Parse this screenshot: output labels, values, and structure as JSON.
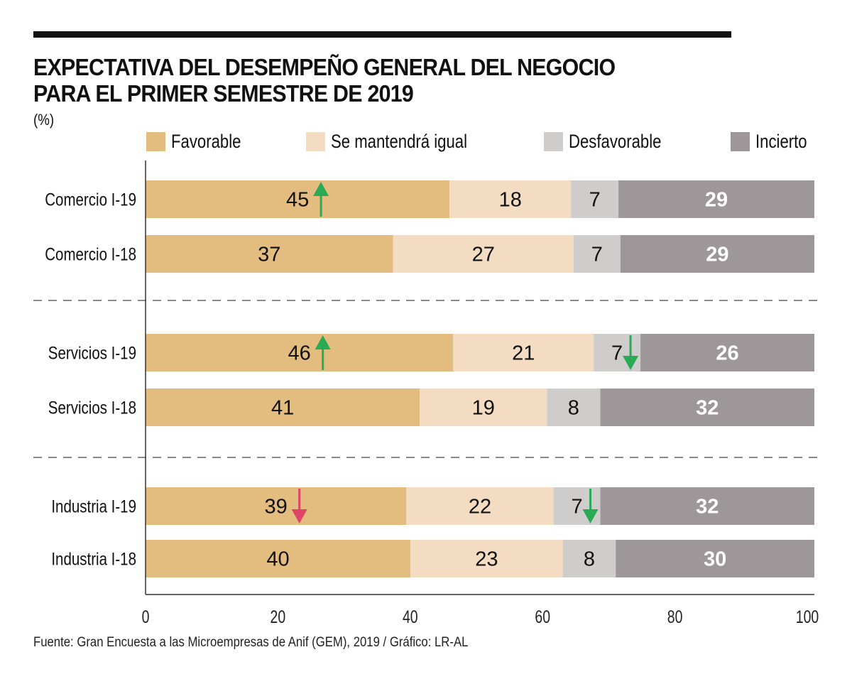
{
  "title_line1": "EXPECTATIVA DEL DESEMPEÑO GENERAL DEL NEGOCIO",
  "title_line2": "PARA EL PRIMER SEMESTRE DE 2019",
  "unit": "(%)",
  "footer": "Fuente: Gran Encuesta a las Microempresas de Anif (GEM), 2019 / Gráfico: LR-AL",
  "colors": {
    "favorable": "#e3bd80",
    "igual": "#f3dcc2",
    "desfavorable": "#cfcdcc",
    "incierto": "#9d9799",
    "arrow_up": "#2aaa55",
    "arrow_down_good": "#2aaa55",
    "arrow_down_bad": "#dd4466"
  },
  "chart_data": {
    "type": "bar",
    "orientation": "horizontal",
    "stacked": true,
    "title": "EXPECTATIVA DEL DESEMPEÑO GENERAL DEL NEGOCIO PARA EL PRIMER SEMESTRE DE 2019",
    "ylabel": "",
    "xlabel": "",
    "unit": "%",
    "xlim": [
      0,
      100
    ],
    "xticks": [
      0,
      20,
      40,
      60,
      80,
      100
    ],
    "legend_position": "top",
    "categories": [
      "Comercio I-19",
      "Comercio I-18",
      "Servicios I-19",
      "Servicios I-18",
      "Industria I-19",
      "Industria I-18"
    ],
    "groups": [
      {
        "name": "Comercio",
        "rows": [
          0,
          1
        ]
      },
      {
        "name": "Servicios",
        "rows": [
          2,
          3
        ]
      },
      {
        "name": "Industria",
        "rows": [
          4,
          5
        ]
      }
    ],
    "series": [
      {
        "name": "Favorable",
        "key": "favorable",
        "values": [
          45,
          37,
          46,
          41,
          39,
          40
        ]
      },
      {
        "name": "Se mantendrá igual",
        "key": "igual",
        "values": [
          18,
          27,
          21,
          19,
          22,
          23
        ]
      },
      {
        "name": "Desfavorable",
        "key": "desfavorable",
        "values": [
          7,
          7,
          7,
          8,
          7,
          8
        ]
      },
      {
        "name": "Incierto",
        "key": "incierto",
        "values": [
          29,
          29,
          26,
          32,
          32,
          30
        ]
      }
    ],
    "annotations": [
      {
        "row": 0,
        "series": "favorable",
        "type": "arrow-up",
        "color_key": "arrow_up"
      },
      {
        "row": 2,
        "series": "favorable",
        "type": "arrow-up",
        "color_key": "arrow_up"
      },
      {
        "row": 2,
        "series": "desfavorable",
        "type": "arrow-down",
        "color_key": "arrow_down_good"
      },
      {
        "row": 4,
        "series": "favorable",
        "type": "arrow-down",
        "color_key": "arrow_down_bad"
      },
      {
        "row": 4,
        "series": "desfavorable",
        "type": "arrow-down",
        "color_key": "arrow_down_good"
      }
    ]
  }
}
